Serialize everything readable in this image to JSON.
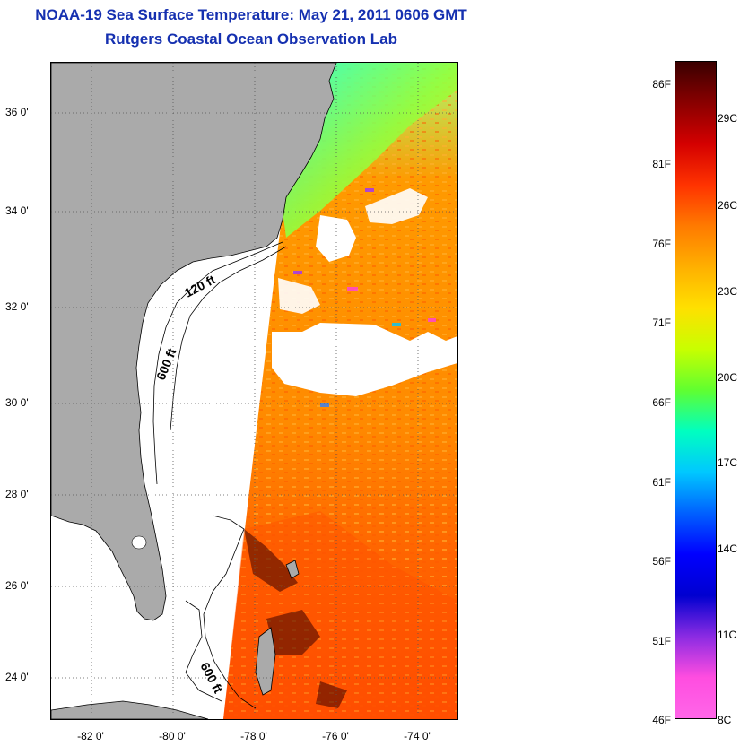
{
  "title": {
    "line1": "NOAA-19 Sea Surface Temperature:  May 21, 2011 0606 GMT",
    "line2": "Rutgers Coastal Ocean Observation Lab"
  },
  "map": {
    "lon_range": [
      -83,
      -73
    ],
    "lat_range": [
      23,
      37
    ],
    "latitude_labels": [
      {
        "lat": 36,
        "text": "36 0'"
      },
      {
        "lat": 34,
        "text": "34 0'"
      },
      {
        "lat": 32,
        "text": "32 0'"
      },
      {
        "lat": 30,
        "text": "30 0'"
      },
      {
        "lat": 28,
        "text": "28 0'"
      },
      {
        "lat": 26,
        "text": "26 0'"
      },
      {
        "lat": 24,
        "text": "24 0'"
      }
    ],
    "longitude_labels": [
      {
        "lon": -82,
        "text": "-82 0'"
      },
      {
        "lon": -80,
        "text": "-80 0'"
      },
      {
        "lon": -78,
        "text": "-78 0'"
      },
      {
        "lon": -76,
        "text": "-76 0'"
      },
      {
        "lon": -74,
        "text": "-74 0'"
      }
    ],
    "depth_contours": [
      "120 ft",
      "600 ft",
      "600 ft"
    ],
    "land_color": "#aaaaaa",
    "cloud_color": "#ffffff"
  },
  "colorbar": {
    "fahrenheit_labels": [
      "86F",
      "81F",
      "76F",
      "71F",
      "66F",
      "61F",
      "56F",
      "51F",
      "46F"
    ],
    "celsius_labels": [
      "29C",
      "26C",
      "23C",
      "20C",
      "17C",
      "14C",
      "11C",
      "8C"
    ],
    "stops": [
      "#3a0000",
      "#8a0000",
      "#d40000",
      "#ff3300",
      "#ff7a00",
      "#ffb000",
      "#ffe000",
      "#c8ff00",
      "#60ff30",
      "#00ffc0",
      "#00c8ff",
      "#0060ff",
      "#0000ff",
      "#0000d0",
      "#8a2be2",
      "#ff4de0",
      "#ff66e8"
    ]
  }
}
